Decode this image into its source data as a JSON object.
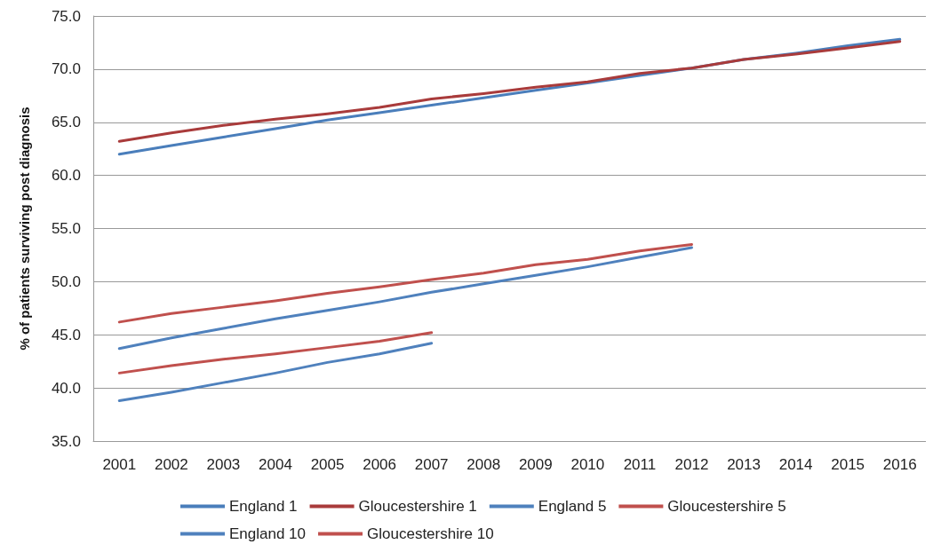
{
  "chart_data": {
    "type": "line",
    "ylabel": "% of patients surviving post diagnosis",
    "categories": [
      "2001",
      "2002",
      "2003",
      "2004",
      "2005",
      "2006",
      "2007",
      "2008",
      "2009",
      "2010",
      "2011",
      "2012",
      "2013",
      "2014",
      "2015",
      "2016"
    ],
    "series": [
      {
        "name": "England 1",
        "color": "#4a7ebb",
        "values": [
          62.0,
          62.8,
          63.6,
          64.4,
          65.2,
          65.9,
          66.6,
          67.3,
          68.0,
          68.7,
          69.4,
          70.1,
          70.9,
          71.5,
          72.2,
          72.8
        ]
      },
      {
        "name": "Gloucestershire 1",
        "color": "#a93b3b",
        "values": [
          63.2,
          64.0,
          64.7,
          65.3,
          65.8,
          66.4,
          67.2,
          67.7,
          68.3,
          68.8,
          69.6,
          70.1,
          70.9,
          71.4,
          72.0,
          72.6
        ]
      },
      {
        "name": "England 5",
        "color": "#4f81bd",
        "values": [
          43.7,
          44.7,
          45.6,
          46.5,
          47.3,
          48.1,
          49.0,
          49.8,
          50.6,
          51.4,
          52.3,
          53.2,
          null,
          null,
          null,
          null
        ]
      },
      {
        "name": "Gloucestershire 5",
        "color": "#c0504d",
        "values": [
          46.2,
          47.0,
          47.6,
          48.2,
          48.9,
          49.5,
          50.2,
          50.8,
          51.6,
          52.1,
          52.9,
          53.5,
          null,
          null,
          null,
          null
        ]
      },
      {
        "name": "England 10",
        "color": "#4f81bd",
        "values": [
          38.8,
          39.6,
          40.5,
          41.4,
          42.4,
          43.2,
          44.2,
          null,
          null,
          null,
          null,
          null,
          null,
          null,
          null,
          null
        ]
      },
      {
        "name": "Gloucestershire 10",
        "color": "#c0504d",
        "values": [
          41.4,
          42.1,
          42.7,
          43.2,
          43.8,
          44.4,
          45.2,
          null,
          null,
          null,
          null,
          null,
          null,
          null,
          null,
          null
        ]
      }
    ],
    "ylim": [
      35,
      75
    ],
    "yticks": [
      {
        "value": 35,
        "label": "35.0"
      },
      {
        "value": 40,
        "label": "40.0"
      },
      {
        "value": 45,
        "label": "45.0"
      },
      {
        "value": 50,
        "label": "50.0"
      },
      {
        "value": 55,
        "label": "55.0"
      },
      {
        "value": 60,
        "label": "60.0"
      },
      {
        "value": 65,
        "label": "65.0"
      },
      {
        "value": 70,
        "label": "70.0"
      },
      {
        "value": 75,
        "label": "75.0"
      }
    ],
    "grid": "y",
    "legend": "bottom",
    "marker": "none",
    "line_style": "solid"
  }
}
